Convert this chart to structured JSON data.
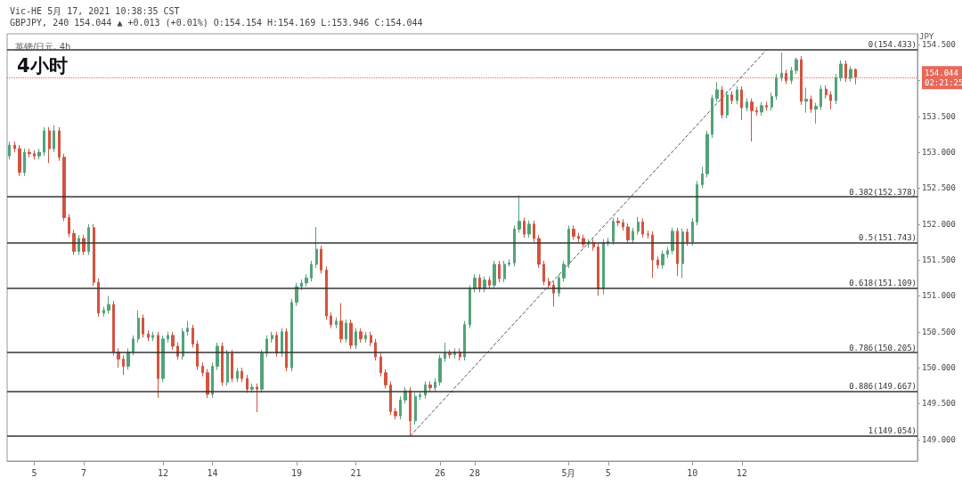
{
  "chart_data": {
    "type": "candlestick",
    "title": "4小时",
    "subtitle": "英镑/日元, 4h",
    "ylabel": "JPY",
    "annotations": [
      "Vic-HE 5月 17, 2021 10:38:35 CST",
      "GBPJPY, 240 154.044 ▲ +0.013 (+0.01%) O:154.154 H:154.169 L:153.946 C:154.044"
    ],
    "categories": [
      null,
      null,
      null,
      null,
      null,
      "5",
      null,
      null,
      null,
      null,
      null,
      null,
      null,
      null,
      null,
      "7",
      null,
      null,
      null,
      null,
      null,
      null,
      null,
      null,
      null,
      null,
      null,
      null,
      null,
      null,
      null,
      "12",
      null,
      null,
      null,
      null,
      null,
      null,
      null,
      null,
      null,
      "14",
      null,
      null,
      null,
      null,
      null,
      null,
      null,
      null,
      null,
      null,
      null,
      null,
      null,
      null,
      null,
      null,
      "19",
      null,
      null,
      null,
      null,
      null,
      null,
      null,
      null,
      null,
      null,
      null,
      "21",
      null,
      null,
      null,
      null,
      null,
      null,
      null,
      null,
      null,
      null,
      null,
      null,
      null,
      null,
      null,
      null,
      "26",
      null,
      null,
      null,
      null,
      null,
      null,
      "28",
      null,
      null,
      null,
      null,
      null,
      null,
      null,
      null,
      null,
      null,
      null,
      null,
      null,
      null,
      null,
      null,
      null,
      null,
      "5月",
      null,
      null,
      null,
      null,
      null,
      null,
      null,
      "5",
      null,
      null,
      null,
      null,
      null,
      null,
      null,
      null,
      null,
      null,
      null,
      null,
      null,
      null,
      null,
      null,
      "10",
      null,
      null,
      null,
      null,
      null,
      null,
      null,
      null,
      null,
      "12",
      null,
      null,
      null,
      null,
      null,
      null,
      null,
      null,
      null,
      null,
      null,
      null,
      null,
      null,
      null,
      null,
      null,
      null,
      null,
      null,
      null,
      null,
      null,
      null,
      null,
      null,
      null,
      null,
      null,
      null,
      null,
      null,
      null,
      null,
      null
    ],
    "ylim": [
      148.7,
      154.65
    ],
    "yticks": [
      {
        "value": 149,
        "label": "149.000"
      },
      {
        "value": 149.5,
        "label": "149.500"
      },
      {
        "value": 150,
        "label": "150.000"
      },
      {
        "value": 150.5,
        "label": "150.500"
      },
      {
        "value": 151,
        "label": "151.000"
      },
      {
        "value": 151.5,
        "label": "151.500"
      },
      {
        "value": 152,
        "label": "152.000"
      },
      {
        "value": 152.5,
        "label": "152.500"
      },
      {
        "value": 153,
        "label": "153.000"
      },
      {
        "value": 153.5,
        "label": "153.500"
      },
      {
        "value": 154,
        "label": null
      },
      {
        "value": 154.5,
        "label": "154.500"
      }
    ],
    "grid": false,
    "ref_lines": [
      {
        "axis": "y",
        "value": 154.433,
        "label": "0(154.433)",
        "color": "#333333"
      },
      {
        "axis": "y",
        "value": 152.378,
        "label": "0.382(152.378)",
        "color": "#333333"
      },
      {
        "axis": "y",
        "value": 151.743,
        "label": "0.5(151.743)",
        "color": "#333333"
      },
      {
        "axis": "y",
        "value": 151.109,
        "label": "0.618(151.109)",
        "color": "#333333"
      },
      {
        "axis": "y",
        "value": 150.205,
        "label": "0.786(150.205)",
        "color": "#333333"
      },
      {
        "axis": "y",
        "value": 149.667,
        "label": "0.886(149.667)",
        "color": "#333333"
      },
      {
        "axis": "y",
        "value": 149.054,
        "label": "1(149.054)",
        "color": "#333333"
      },
      {
        "axis": "y",
        "value": 154.044,
        "label": "154.044\n02:21:25",
        "color": "#e8685a",
        "line_style": "dotted"
      }
    ],
    "series": [
      {
        "ohlc": [
          [
            152.95,
            153.15,
            152.9,
            153.1
          ],
          [
            153.1,
            153.15,
            153.0,
            153.05
          ],
          [
            153.05,
            153.1,
            152.67,
            152.72
          ],
          [
            152.72,
            153.05,
            152.67,
            153.0
          ],
          [
            153.0,
            153.05,
            152.93,
            152.98
          ],
          [
            152.98,
            153.03,
            152.9,
            152.95
          ],
          [
            152.95,
            153.05,
            152.9,
            153.0
          ],
          [
            153.0,
            153.35,
            152.95,
            153.3
          ],
          [
            153.3,
            153.35,
            152.85,
            153.05
          ],
          [
            153.05,
            153.38,
            153.0,
            153.3
          ],
          [
            153.3,
            153.35,
            152.88,
            152.93
          ],
          [
            152.93,
            152.98,
            152.04,
            152.09
          ],
          [
            152.09,
            152.14,
            151.82,
            151.87
          ],
          [
            151.87,
            151.92,
            151.57,
            151.62
          ],
          [
            151.62,
            151.85,
            151.57,
            151.8
          ],
          [
            151.8,
            151.85,
            151.57,
            151.62
          ],
          [
            151.62,
            152.0,
            151.57,
            151.95
          ],
          [
            151.95,
            152.0,
            151.14,
            151.19
          ],
          [
            151.19,
            151.24,
            150.71,
            150.76
          ],
          [
            150.76,
            150.85,
            150.71,
            150.8
          ],
          [
            150.8,
            151.0,
            150.75,
            150.88
          ],
          [
            150.88,
            150.93,
            150.17,
            150.22
          ],
          [
            150.22,
            150.27,
            150.0,
            150.12
          ],
          [
            150.12,
            150.17,
            149.9,
            150.02
          ],
          [
            150.02,
            150.27,
            149.97,
            150.22
          ],
          [
            150.22,
            150.45,
            150.17,
            150.4
          ],
          [
            150.4,
            150.8,
            150.35,
            150.69
          ],
          [
            150.69,
            150.74,
            150.42,
            150.47
          ],
          [
            150.47,
            150.52,
            150.37,
            150.42
          ],
          [
            150.42,
            150.5,
            150.37,
            150.45
          ],
          [
            150.45,
            150.5,
            149.58,
            149.85
          ],
          [
            149.85,
            150.45,
            149.8,
            150.4
          ],
          [
            150.4,
            150.5,
            150.35,
            150.45
          ],
          [
            150.45,
            150.5,
            150.25,
            150.3
          ],
          [
            150.3,
            150.35,
            150.11,
            150.16
          ],
          [
            150.16,
            150.55,
            150.11,
            150.5
          ],
          [
            150.5,
            150.65,
            150.45,
            150.55
          ],
          [
            150.55,
            150.6,
            150.28,
            150.33
          ],
          [
            150.33,
            150.38,
            149.97,
            150.02
          ],
          [
            150.02,
            150.07,
            149.88,
            149.93
          ],
          [
            149.93,
            149.98,
            149.58,
            149.63
          ],
          [
            149.63,
            150.07,
            149.58,
            150.02
          ],
          [
            150.02,
            150.35,
            149.97,
            150.3
          ],
          [
            150.3,
            150.35,
            149.75,
            149.8
          ],
          [
            149.8,
            150.25,
            149.75,
            150.2
          ],
          [
            150.2,
            150.25,
            149.8,
            149.85
          ],
          [
            149.85,
            150.0,
            149.8,
            149.95
          ],
          [
            149.95,
            150.0,
            149.8,
            149.85
          ],
          [
            149.85,
            149.9,
            149.65,
            149.7
          ],
          [
            149.7,
            149.78,
            149.65,
            149.73
          ],
          [
            149.73,
            149.78,
            149.38,
            149.7
          ],
          [
            149.7,
            150.25,
            149.65,
            150.2
          ],
          [
            150.2,
            150.45,
            150.15,
            150.4
          ],
          [
            150.4,
            150.5,
            150.35,
            150.45
          ],
          [
            150.45,
            150.5,
            150.15,
            150.2
          ],
          [
            150.2,
            150.55,
            150.15,
            150.5
          ],
          [
            150.5,
            150.55,
            149.95,
            150.0
          ],
          [
            150.0,
            150.96,
            149.95,
            150.91
          ],
          [
            150.91,
            151.18,
            150.86,
            151.13
          ],
          [
            151.13,
            151.23,
            151.08,
            151.18
          ],
          [
            151.18,
            151.3,
            151.13,
            151.25
          ],
          [
            151.25,
            151.49,
            151.2,
            151.44
          ],
          [
            151.44,
            151.96,
            151.39,
            151.65
          ],
          [
            151.65,
            151.7,
            151.31,
            151.36
          ],
          [
            151.36,
            151.41,
            150.67,
            150.72
          ],
          [
            150.72,
            150.77,
            150.55,
            150.6
          ],
          [
            150.6,
            150.7,
            150.55,
            150.65
          ],
          [
            150.65,
            150.9,
            150.35,
            150.4
          ],
          [
            150.4,
            150.67,
            150.35,
            150.62
          ],
          [
            150.62,
            150.67,
            150.26,
            150.31
          ],
          [
            150.31,
            150.55,
            150.26,
            150.5
          ],
          [
            150.5,
            150.55,
            150.35,
            150.4
          ],
          [
            150.4,
            150.5,
            150.35,
            150.45
          ],
          [
            150.45,
            150.5,
            150.3,
            150.35
          ],
          [
            150.35,
            150.4,
            150.1,
            150.15
          ],
          [
            150.15,
            150.2,
            149.88,
            149.93
          ],
          [
            149.93,
            149.98,
            149.71,
            149.76
          ],
          [
            149.76,
            149.81,
            149.34,
            149.39
          ],
          [
            149.39,
            149.44,
            149.28,
            149.33
          ],
          [
            149.33,
            149.6,
            149.28,
            149.55
          ],
          [
            149.55,
            149.73,
            149.5,
            149.68
          ],
          [
            149.68,
            149.73,
            149.054,
            149.26
          ],
          [
            149.26,
            149.65,
            149.21,
            149.6
          ],
          [
            149.6,
            149.67,
            149.55,
            149.62
          ],
          [
            149.62,
            149.81,
            149.57,
            149.76
          ],
          [
            149.76,
            149.81,
            149.67,
            149.72
          ],
          [
            149.72,
            149.85,
            149.67,
            149.8
          ],
          [
            149.8,
            150.18,
            149.75,
            150.13
          ],
          [
            150.13,
            150.35,
            150.08,
            150.2
          ],
          [
            150.2,
            150.25,
            150.13,
            150.18
          ],
          [
            150.18,
            150.27,
            150.13,
            150.22
          ],
          [
            150.22,
            150.27,
            150.1,
            150.15
          ],
          [
            150.15,
            150.65,
            150.1,
            150.6
          ],
          [
            150.6,
            151.15,
            150.55,
            151.1
          ],
          [
            151.1,
            151.3,
            151.05,
            151.25
          ],
          [
            151.25,
            151.3,
            151.05,
            151.1
          ],
          [
            151.1,
            151.27,
            151.05,
            151.22
          ],
          [
            151.22,
            151.27,
            151.1,
            151.15
          ],
          [
            151.15,
            151.49,
            151.1,
            151.44
          ],
          [
            151.44,
            151.49,
            151.19,
            151.24
          ],
          [
            151.24,
            151.49,
            151.19,
            151.44
          ],
          [
            151.44,
            151.51,
            151.41,
            151.46
          ],
          [
            151.46,
            151.98,
            151.41,
            151.93
          ],
          [
            151.93,
            152.4,
            151.88,
            152.04
          ],
          [
            152.04,
            152.09,
            151.81,
            151.86
          ],
          [
            151.86,
            152.05,
            151.81,
            152.0
          ],
          [
            152.0,
            152.05,
            151.75,
            151.8
          ],
          [
            151.8,
            151.85,
            151.39,
            151.44
          ],
          [
            151.44,
            151.49,
            151.15,
            151.2
          ],
          [
            151.2,
            151.25,
            151.1,
            151.15
          ],
          [
            151.15,
            151.2,
            150.85,
            151.04
          ],
          [
            151.04,
            151.3,
            150.99,
            151.25
          ],
          [
            151.25,
            151.49,
            151.2,
            151.44
          ],
          [
            151.44,
            151.98,
            151.39,
            151.93
          ],
          [
            151.93,
            151.98,
            151.78,
            151.83
          ],
          [
            151.83,
            151.88,
            151.75,
            151.8
          ],
          [
            151.8,
            151.85,
            151.67,
            151.72
          ],
          [
            151.72,
            151.79,
            151.67,
            151.74
          ],
          [
            151.74,
            151.79,
            151.63,
            151.68
          ],
          [
            151.68,
            151.73,
            151.0,
            151.1
          ],
          [
            151.1,
            151.79,
            151.02,
            151.74
          ],
          [
            151.74,
            151.81,
            151.69,
            151.76
          ],
          [
            151.76,
            152.09,
            151.71,
            152.04
          ],
          [
            152.04,
            152.09,
            151.97,
            152.02
          ],
          [
            152.02,
            152.07,
            151.91,
            151.96
          ],
          [
            151.96,
            152.01,
            151.73,
            151.78
          ],
          [
            151.78,
            151.95,
            151.73,
            151.9
          ],
          [
            151.9,
            152.1,
            151.85,
            152.03
          ],
          [
            152.03,
            152.08,
            151.81,
            151.86
          ],
          [
            151.86,
            151.91,
            151.8,
            151.85
          ],
          [
            151.85,
            151.9,
            151.25,
            151.5
          ],
          [
            151.5,
            151.55,
            151.38,
            151.43
          ],
          [
            151.43,
            151.63,
            151.38,
            151.58
          ],
          [
            151.58,
            151.68,
            151.53,
            151.63
          ],
          [
            151.63,
            151.95,
            151.58,
            151.9
          ],
          [
            151.9,
            151.95,
            151.28,
            151.45
          ],
          [
            151.45,
            151.94,
            151.25,
            151.89
          ],
          [
            151.89,
            151.94,
            151.7,
            151.75
          ],
          [
            151.75,
            152.08,
            151.7,
            152.03
          ],
          [
            152.03,
            152.6,
            151.98,
            152.55
          ],
          [
            152.55,
            152.8,
            152.5,
            152.7
          ],
          [
            152.7,
            153.3,
            152.65,
            153.25
          ],
          [
            153.25,
            153.8,
            153.2,
            153.75
          ],
          [
            153.75,
            153.98,
            153.7,
            153.87
          ],
          [
            153.87,
            153.92,
            153.47,
            153.52
          ],
          [
            153.52,
            153.85,
            153.47,
            153.8
          ],
          [
            153.8,
            153.85,
            153.67,
            153.72
          ],
          [
            153.72,
            153.92,
            153.67,
            153.87
          ],
          [
            153.87,
            153.92,
            153.45,
            153.62
          ],
          [
            153.62,
            153.75,
            153.57,
            153.7
          ],
          [
            153.7,
            153.75,
            153.15,
            153.58
          ],
          [
            153.58,
            153.63,
            153.51,
            153.56
          ],
          [
            153.56,
            153.7,
            153.51,
            153.65
          ],
          [
            153.65,
            153.7,
            153.58,
            153.63
          ],
          [
            153.63,
            153.83,
            153.58,
            153.78
          ],
          [
            153.78,
            154.09,
            153.73,
            154.04
          ],
          [
            154.04,
            154.39,
            153.99,
            154.1
          ],
          [
            154.1,
            154.15,
            153.95,
            154.0
          ],
          [
            154.0,
            154.19,
            153.95,
            154.14
          ],
          [
            154.14,
            154.32,
            154.09,
            154.29
          ],
          [
            154.29,
            154.34,
            153.66,
            153.71
          ],
          [
            153.71,
            153.9,
            153.55,
            153.74
          ],
          [
            153.74,
            153.79,
            153.55,
            153.6
          ],
          [
            153.6,
            153.69,
            153.4,
            153.64
          ],
          [
            153.64,
            153.93,
            153.59,
            153.88
          ],
          [
            153.88,
            153.93,
            153.75,
            153.8
          ],
          [
            153.8,
            153.85,
            153.6,
            153.72
          ],
          [
            153.72,
            154.09,
            153.67,
            154.04
          ],
          [
            154.04,
            154.28,
            153.99,
            154.23
          ],
          [
            154.23,
            154.28,
            153.98,
            154.03
          ],
          [
            154.03,
            154.2,
            153.98,
            154.154
          ],
          [
            154.154,
            154.169,
            153.946,
            154.044
          ],
          null,
          null,
          null,
          null,
          null,
          null,
          null,
          null,
          null,
          null,
          null,
          null
        ],
        "colors": [
          "#53a27a",
          "#d4533f",
          "#d4533f",
          "#53a27a",
          "#d4533f",
          "#d4533f",
          "#53a27a",
          "#53a27a",
          "#d4533f",
          "#53a27a",
          "#d4533f",
          "#d4533f",
          "#d4533f",
          "#d4533f",
          "#53a27a",
          "#d4533f",
          "#53a27a",
          "#d4533f",
          "#d4533f",
          "#53a27a",
          "#53a27a",
          "#d4533f",
          "#d4533f",
          "#d4533f",
          "#53a27a",
          "#53a27a",
          "#53a27a",
          "#d4533f",
          "#d4533f",
          "#53a27a",
          "#d4533f",
          "#53a27a",
          "#53a27a",
          "#d4533f",
          "#d4533f",
          "#53a27a",
          "#53a27a",
          "#d4533f",
          "#d4533f",
          "#d4533f",
          "#d4533f",
          "#53a27a",
          "#53a27a",
          "#d4533f",
          "#53a27a",
          "#d4533f",
          "#53a27a",
          "#d4533f",
          "#d4533f",
          "#53a27a",
          "#d4533f",
          "#53a27a",
          "#53a27a",
          "#53a27a",
          "#d4533f",
          "#53a27a",
          "#d4533f",
          "#53a27a",
          "#53a27a",
          "#53a27a",
          "#53a27a",
          "#53a27a",
          "#53a27a",
          "#d4533f",
          "#d4533f",
          "#d4533f",
          "#53a27a",
          "#d4533f",
          "#53a27a",
          "#d4533f",
          "#53a27a",
          "#d4533f",
          "#53a27a",
          "#d4533f",
          "#d4533f",
          "#d4533f",
          "#d4533f",
          "#d4533f",
          "#d4533f",
          "#53a27a",
          "#53a27a",
          "#d4533f",
          "#53a27a",
          "#53a27a",
          "#53a27a",
          "#d4533f",
          "#53a27a",
          "#53a27a",
          "#53a27a",
          "#d4533f",
          "#53a27a",
          "#d4533f",
          "#53a27a",
          "#53a27a",
          "#53a27a",
          "#d4533f",
          "#53a27a",
          "#d4533f",
          "#53a27a",
          "#d4533f",
          "#53a27a",
          "#53a27a",
          "#53a27a",
          "#53a27a",
          "#d4533f",
          "#53a27a",
          "#d4533f",
          "#d4533f",
          "#d4533f",
          "#d4533f",
          "#d4533f",
          "#53a27a",
          "#53a27a",
          "#53a27a",
          "#d4533f",
          "#d4533f",
          "#d4533f",
          "#53a27a",
          "#d4533f",
          "#d4533f",
          "#53a27a",
          "#53a27a",
          "#53a27a",
          "#d4533f",
          "#d4533f",
          "#d4533f",
          "#53a27a",
          "#53a27a",
          "#d4533f",
          "#d4533f",
          "#d4533f",
          "#d4533f",
          "#53a27a",
          "#53a27a",
          "#53a27a",
          "#d4533f",
          "#53a27a",
          "#d4533f",
          "#53a27a",
          "#53a27a",
          "#53a27a",
          "#53a27a",
          "#53a27a",
          "#53a27a",
          "#d4533f",
          "#53a27a",
          "#d4533f",
          "#53a27a",
          "#d4533f",
          "#53a27a",
          "#d4533f",
          "#d4533f",
          "#53a27a",
          "#d4533f",
          "#53a27a",
          "#53a27a",
          "#53a27a",
          "#d4533f",
          "#53a27a",
          "#53a27a",
          "#d4533f",
          "#53a27a",
          "#d4533f",
          "#53a27a",
          "#53a27a",
          "#d4533f",
          "#d4533f",
          "#53a27a",
          "#53a27a",
          "#d4533f",
          "#53a27a",
          "#d4533f",
          null,
          null,
          null,
          null,
          null,
          null,
          null,
          null,
          null,
          null,
          null,
          null
        ]
      },
      {
        "type": "line",
        "color": "#555555",
        "line_style": "dashed",
        "marker": "none",
        "values": [
          null,
          null,
          null,
          null,
          null,
          null,
          null,
          null,
          null,
          null,
          null,
          null,
          null,
          null,
          null,
          null,
          null,
          null,
          null,
          null,
          null,
          null,
          null,
          null,
          null,
          null,
          null,
          null,
          null,
          null,
          null,
          null,
          null,
          null,
          null,
          null,
          null,
          null,
          null,
          null,
          null,
          null,
          null,
          null,
          null,
          null,
          null,
          null,
          null,
          null,
          null,
          null,
          null,
          null,
          null,
          null,
          null,
          null,
          null,
          null,
          null,
          null,
          null,
          null,
          null,
          null,
          null,
          null,
          null,
          null,
          null,
          null,
          null,
          null,
          null,
          null,
          null,
          null,
          null,
          null,
          null,
          149.05,
          null,
          null,
          null,
          null,
          null,
          null,
          null,
          null,
          null,
          null,
          null,
          null,
          null,
          null,
          null,
          null,
          null,
          null,
          null,
          null,
          null,
          null,
          null,
          null,
          null,
          null,
          null,
          null,
          null,
          null,
          null,
          null,
          null,
          null,
          null,
          null,
          null,
          null,
          null,
          null,
          null,
          null,
          null,
          null,
          null,
          null,
          null,
          null,
          null,
          null,
          null,
          null,
          null,
          null,
          null,
          null,
          null,
          null,
          null,
          null,
          null,
          null,
          null,
          null,
          null,
          null,
          null,
          null,
          null,
          null,
          null,
          154.43,
          null,
          null,
          null,
          null,
          null,
          null,
          null,
          null,
          null,
          null,
          null,
          null,
          null,
          null,
          null,
          null,
          null,
          null,
          null,
          null,
          null,
          null,
          null,
          null,
          null,
          null,
          null,
          null,
          null,
          null
        ]
      }
    ]
  }
}
